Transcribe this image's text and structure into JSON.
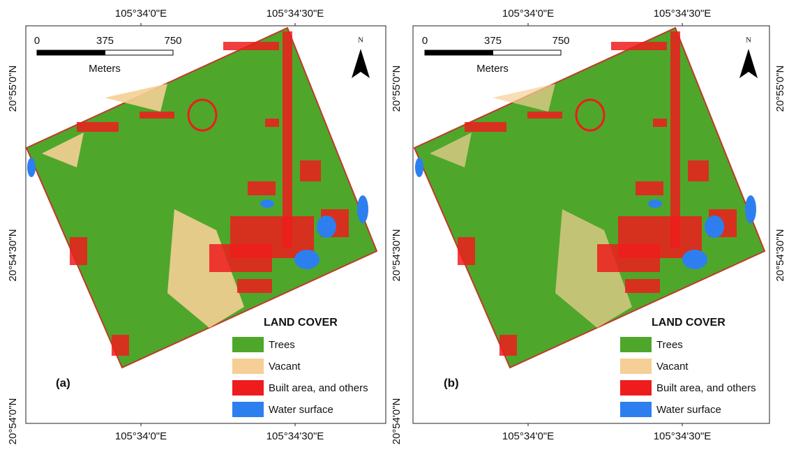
{
  "panels": [
    {
      "label": "(a)",
      "top_labels": [
        "105°34'0\"E",
        "105°34'30\"E"
      ],
      "bottom_labels": [
        "105°34'0\"E",
        "105°34'30\"E"
      ],
      "left_labels": [
        "20°55'0\"N",
        "20°54'30\"N",
        "20°54'0\"N"
      ],
      "right_labels": [
        "20°55'0\"N",
        "20°54'30\"N",
        "20°54'0\"N"
      ],
      "scale": {
        "ticks": [
          0,
          375,
          750
        ],
        "unit": "Meters"
      },
      "north": "N",
      "legend": {
        "title": "LAND COVER",
        "items": [
          {
            "label": "Trees",
            "color": "#4ea72a"
          },
          {
            "label": "Vacant",
            "color": "#f5cf95"
          },
          {
            "label": "Built area, and others",
            "color": "#ee1c1c"
          },
          {
            "label": "Water surface",
            "color": "#2d7ff0"
          }
        ]
      }
    },
    {
      "label": "(b)",
      "top_labels": [
        "105°34'0\"E",
        "105°34'30\"E"
      ],
      "bottom_labels": [
        "105°34'0\"E",
        "105°34'30\"E"
      ],
      "left_labels": [],
      "right_labels": [
        "20°55'0\"N",
        "20°54'30\"N"
      ],
      "scale": {
        "ticks": [
          0,
          375,
          750
        ],
        "unit": "Meters"
      },
      "north": "N",
      "legend": {
        "title": "LAND COVER",
        "items": [
          {
            "label": "Trees",
            "color": "#4ea72a"
          },
          {
            "label": "Vacant",
            "color": "#f5cf95"
          },
          {
            "label": "Built area, and others",
            "color": "#ee1c1c"
          },
          {
            "label": "Water surface",
            "color": "#2d7ff0"
          }
        ]
      }
    }
  ]
}
